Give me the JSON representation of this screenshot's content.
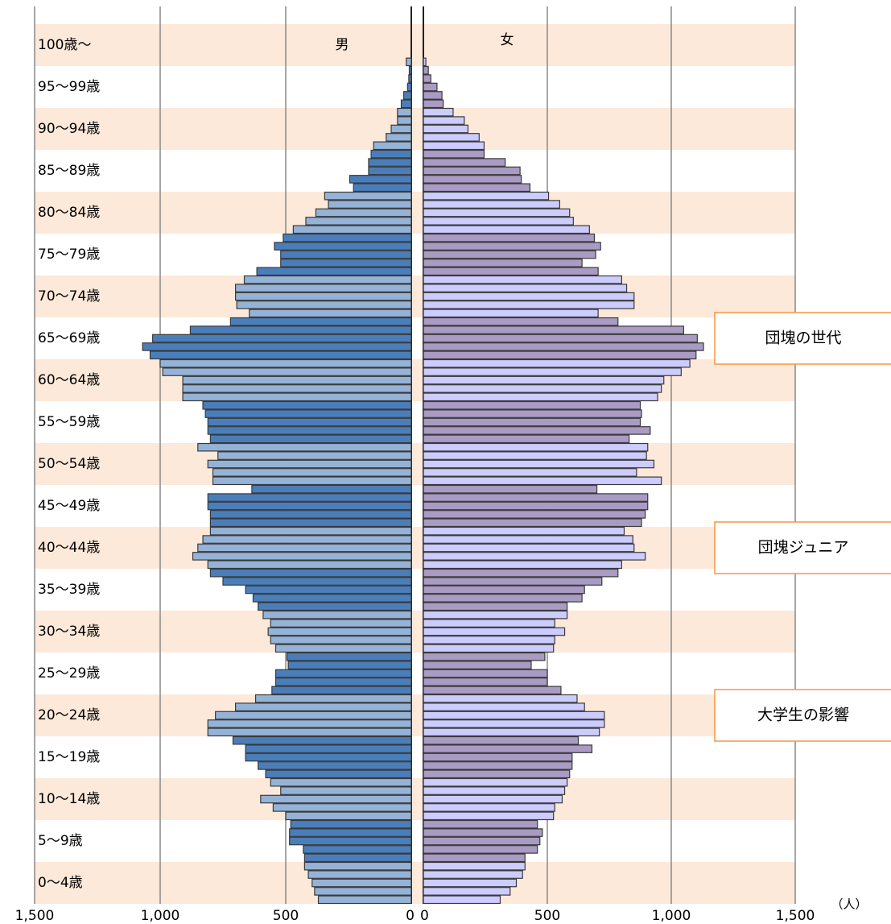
{
  "chart_data": {
    "type": "pyramid",
    "age_groups": [
      "0〜4歳",
      "5〜9歳",
      "10〜14歳",
      "15〜19歳",
      "20〜24歳",
      "25〜29歳",
      "30〜34歳",
      "35〜39歳",
      "40〜44歳",
      "45〜49歳",
      "50〜54歳",
      "55〜59歳",
      "60〜64歳",
      "65〜69歳",
      "70〜74歳",
      "75〜79歳",
      "80〜84歳",
      "85〜89歳",
      "90〜94歳",
      "95〜99歳",
      "100歳〜"
    ],
    "series": [
      {
        "name": "男",
        "colors": [
          "#95b3d7",
          "#4a7ebb"
        ],
        "values": [
          370,
          385,
          395,
          410,
          425,
          425,
          430,
          485,
          485,
          480,
          500,
          550,
          600,
          520,
          560,
          580,
          610,
          660,
          660,
          710,
          810,
          810,
          780,
          700,
          620,
          555,
          540,
          540,
          490,
          495,
          540,
          560,
          570,
          560,
          590,
          610,
          630,
          660,
          750,
          800,
          810,
          870,
          850,
          830,
          800,
          800,
          800,
          810,
          810,
          635,
          790,
          790,
          810,
          770,
          850,
          800,
          810,
          810,
          820,
          830,
          910,
          910,
          910,
          990,
          1000,
          1040,
          1070,
          1030,
          880,
          720,
          645,
          695,
          700,
          700,
          665,
          615,
          520,
          520,
          545,
          510,
          470,
          420,
          380,
          330,
          345,
          230,
          245,
          170,
          170,
          160,
          150,
          100,
          80,
          55,
          55,
          40,
          30,
          15,
          10,
          8,
          20
        ]
      },
      {
        "name": "女",
        "colors": [
          "#ccccff",
          "#a99bc4"
        ],
        "values": [
          310,
          350,
          375,
          400,
          410,
          410,
          460,
          470,
          480,
          460,
          525,
          530,
          560,
          570,
          580,
          590,
          600,
          600,
          680,
          625,
          710,
          730,
          730,
          650,
          620,
          555,
          500,
          500,
          435,
          490,
          525,
          530,
          570,
          530,
          580,
          580,
          640,
          650,
          720,
          785,
          800,
          895,
          850,
          845,
          810,
          880,
          895,
          905,
          905,
          700,
          960,
          860,
          930,
          900,
          905,
          830,
          915,
          875,
          880,
          875,
          945,
          960,
          970,
          1040,
          1075,
          1100,
          1130,
          1105,
          1050,
          785,
          705,
          850,
          850,
          820,
          800,
          705,
          640,
          695,
          715,
          690,
          670,
          605,
          590,
          550,
          505,
          430,
          395,
          390,
          330,
          245,
          245,
          225,
          180,
          165,
          120,
          80,
          75,
          55,
          30,
          20,
          10
        ]
      }
    ],
    "xlim": [
      0,
      1500
    ],
    "xticks": [
      0,
      500,
      {
        "value": 1000,
        "label": "1,000"
      },
      {
        "value": 1500,
        "label": "1,500"
      }
    ],
    "unit": "（人）",
    "grid": true,
    "band_color": "#fde9d9",
    "callouts": [
      {
        "text": "団塊の世代",
        "age_group": 13
      },
      {
        "text": "団塊ジュニア",
        "age_group": 8
      },
      {
        "text": "大学生の影響",
        "age_group": 4
      }
    ]
  }
}
